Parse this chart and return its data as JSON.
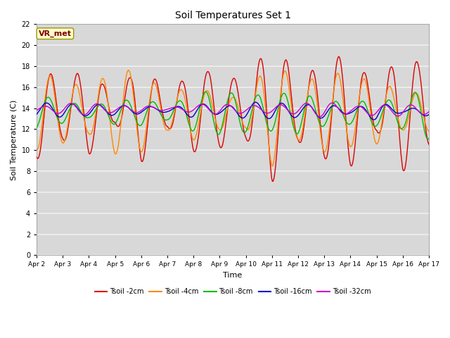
{
  "title": "Soil Temperatures Set 1",
  "xlabel": "Time",
  "ylabel": "Soil Temperature (C)",
  "ylim": [
    0,
    22
  ],
  "yticks": [
    0,
    2,
    4,
    6,
    8,
    10,
    12,
    14,
    16,
    18,
    20,
    22
  ],
  "xtick_labels": [
    "Apr 2",
    "Apr 3",
    "Apr 4",
    "Apr 5",
    "Apr 6",
    "Apr 7",
    "Apr 8",
    "Apr 9",
    "Apr 10",
    "Apr 11",
    "Apr 12",
    "Apr 13",
    "Apr 14",
    "Apr 15",
    "Apr 16",
    "Apr 17"
  ],
  "figure_bg": "#ffffff",
  "plot_bg_color": "#d8d8d8",
  "grid_color": "#f0f0f0",
  "annotation_text": "VR_met",
  "annotation_bg": "#ffffcc",
  "annotation_border": "#999900",
  "annotation_text_color": "#800000",
  "series": {
    "Tsoil -2cm": {
      "color": "#dd0000",
      "lw": 1.0
    },
    "Tsoil -4cm": {
      "color": "#ff8800",
      "lw": 1.0
    },
    "Tsoil -8cm": {
      "color": "#00bb00",
      "lw": 1.0
    },
    "Tsoil -16cm": {
      "color": "#0000cc",
      "lw": 1.0
    },
    "Tsoil -32cm": {
      "color": "#cc00cc",
      "lw": 1.0
    }
  },
  "n_points": 720,
  "days": 15
}
